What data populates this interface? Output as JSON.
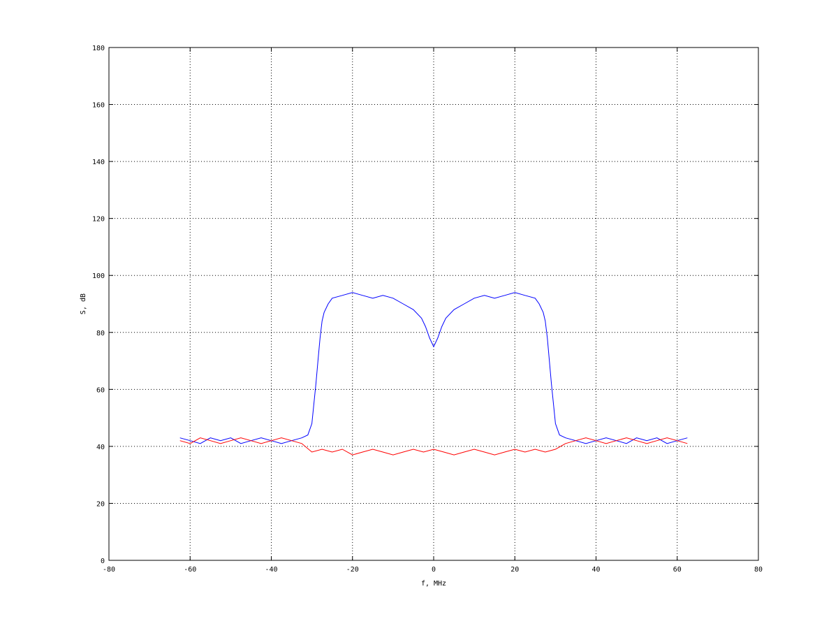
{
  "chart_data": {
    "type": "line",
    "title": "",
    "xlabel": "f, MHz",
    "ylabel": "S, dB",
    "xlim": [
      -80,
      80
    ],
    "ylim": [
      0,
      180
    ],
    "xticks": [
      -80,
      -60,
      -40,
      -20,
      0,
      20,
      40,
      60,
      80
    ],
    "yticks": [
      0,
      20,
      40,
      60,
      80,
      100,
      120,
      140,
      160,
      180
    ],
    "grid": true,
    "legend": "none",
    "series": [
      {
        "color": "#0000ff",
        "x": [
          -62.5,
          -60,
          -57.5,
          -55,
          -52.5,
          -50,
          -47.5,
          -45,
          -42.5,
          -40,
          -37.5,
          -35,
          -32.5,
          -31,
          -30,
          -29.5,
          -29,
          -28.5,
          -28,
          -27.5,
          -27,
          -26,
          -25,
          -22.5,
          -20,
          -17.5,
          -15,
          -12.5,
          -10,
          -7.5,
          -5,
          -3,
          -2,
          -1,
          0,
          1,
          2,
          3,
          5,
          7.5,
          10,
          12.5,
          15,
          17.5,
          20,
          22.5,
          25,
          26,
          27,
          27.5,
          28,
          28.5,
          29,
          29.5,
          30,
          31,
          32.5,
          35,
          37.5,
          40,
          42.5,
          45,
          47.5,
          50,
          52.5,
          55,
          57.5,
          60,
          62.5
        ],
        "y": [
          43,
          42,
          41,
          43,
          42,
          43,
          41,
          42,
          43,
          42,
          41,
          42,
          43,
          44,
          48,
          55,
          62,
          70,
          78,
          84,
          87,
          90,
          92,
          93,
          94,
          93,
          92,
          93,
          92,
          90,
          88,
          85,
          82,
          78,
          75,
          78,
          82,
          85,
          88,
          90,
          92,
          93,
          92,
          93,
          94,
          93,
          92,
          90,
          87,
          84,
          78,
          70,
          62,
          55,
          48,
          44,
          43,
          42,
          41,
          42,
          43,
          42,
          41,
          43,
          42,
          43,
          41,
          42,
          43
        ]
      },
      {
        "color": "#ff0000",
        "x": [
          -62.5,
          -60,
          -57.5,
          -55,
          -52.5,
          -50,
          -47.5,
          -45,
          -42.5,
          -40,
          -37.5,
          -35,
          -32.5,
          -30,
          -27.5,
          -25,
          -22.5,
          -20,
          -17.5,
          -15,
          -12.5,
          -10,
          -7.5,
          -5,
          -2.5,
          0,
          2.5,
          5,
          7.5,
          10,
          12.5,
          15,
          17.5,
          20,
          22.5,
          25,
          27.5,
          30,
          32.5,
          35,
          37.5,
          40,
          42.5,
          45,
          47.5,
          50,
          52.5,
          55,
          57.5,
          60,
          62.5
        ],
        "y": [
          42,
          41,
          43,
          42,
          41,
          42,
          43,
          42,
          41,
          42,
          43,
          42,
          41,
          38,
          39,
          38,
          39,
          37,
          38,
          39,
          38,
          37,
          38,
          39,
          38,
          39,
          38,
          37,
          38,
          39,
          38,
          37,
          38,
          39,
          38,
          39,
          38,
          39,
          41,
          42,
          43,
          42,
          41,
          42,
          43,
          42,
          41,
          42,
          43,
          42,
          41
        ]
      }
    ]
  }
}
